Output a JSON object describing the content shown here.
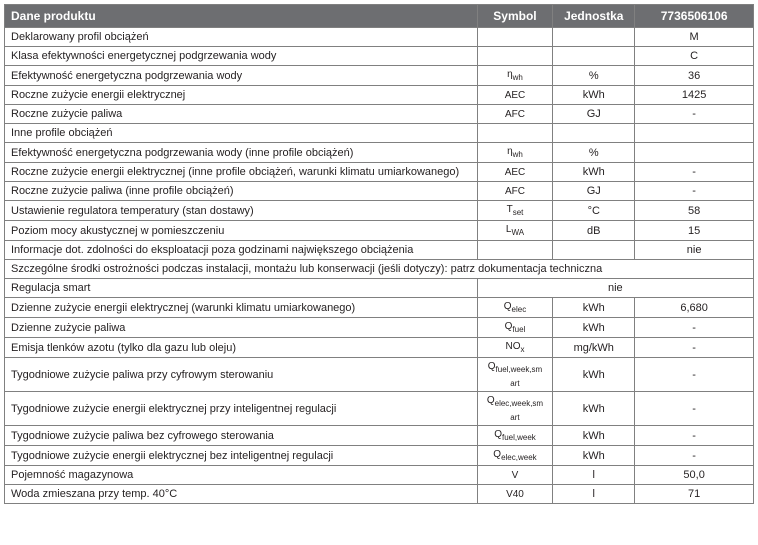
{
  "headers": {
    "product_data": "Dane produktu",
    "symbol": "Symbol",
    "unit": "Jednostka",
    "model": "7736506106"
  },
  "rows": [
    {
      "label": "Deklarowany profil obciążeń",
      "symbol": "",
      "unit": "",
      "value": "M"
    },
    {
      "label": "Klasa efektywności energetycznej podgrzewania wody",
      "symbol": "",
      "unit": "",
      "value": "C"
    },
    {
      "label": "Efektywność energetyczna podgrzewania wody",
      "symbol_html": "η<sub>wh</sub>",
      "unit": "%",
      "value": "36"
    },
    {
      "label": "Roczne zużycie energii elektrycznej",
      "symbol": "AEC",
      "unit": "kWh",
      "value": "1425"
    },
    {
      "label": "Roczne zużycie paliwa",
      "symbol": "AFC",
      "unit": "GJ",
      "value": "-"
    },
    {
      "label": "Inne profile obciążeń",
      "symbol": "",
      "unit": "",
      "value": ""
    },
    {
      "label": "Efektywność energetyczna podgrzewania wody (inne profile obciążeń)",
      "symbol_html": "η<sub>wh</sub>",
      "unit": "%",
      "value": ""
    },
    {
      "label": "Roczne zużycie energii elektrycznej (inne profile obciążeń, warunki klimatu umiarkowanego)",
      "symbol": "AEC",
      "unit": "kWh",
      "value": "-"
    },
    {
      "label": "Roczne zużycie paliwa (inne profile obciążeń)",
      "symbol": "AFC",
      "unit": "GJ",
      "value": "-"
    },
    {
      "label": "Ustawienie regulatora temperatury (stan dostawy)",
      "symbol_html": "T<sub>set</sub>",
      "unit": "°C",
      "value": "58"
    },
    {
      "label": "Poziom mocy akustycznej w pomieszczeniu",
      "symbol_html": "L<sub>WA</sub>",
      "unit": "dB",
      "value": "15"
    },
    {
      "label": "Informacje dot. zdolności do eksploatacji poza godzinami największego obciążenia",
      "symbol": "",
      "unit": "",
      "value": "nie"
    }
  ],
  "merged_row": "Szczególne środki ostrożności podczas instalacji, montażu lub konserwacji (jeśli dotyczy): patrz dokumentacja techniczna",
  "smart_row": {
    "label": "Regulacja smart",
    "value": "nie"
  },
  "rows2": [
    {
      "label": "Dzienne zużycie energii elektrycznej (warunki klimatu umiarkowanego)",
      "symbol_html": "Q<sub>elec</sub>",
      "unit": "kWh",
      "value": "6,680"
    },
    {
      "label": "Dzienne zużycie paliwa",
      "symbol_html": "Q<sub>fuel</sub>",
      "unit": "kWh",
      "value": "-"
    },
    {
      "label": "Emisja tlenków azotu (tylko dla gazu lub oleju)",
      "symbol_html": "NO<sub>x</sub>",
      "unit": "mg/kWh",
      "value": "-"
    },
    {
      "label": "Tygodniowe zużycie paliwa przy cyfrowym sterowaniu",
      "symbol_html": "Q<sub>fuel,week,sm<br>art</sub>",
      "unit": "kWh",
      "value": "-",
      "tall": true
    },
    {
      "label": "Tygodniowe zużycie energii elektrycznej przy inteligentnej regulacji",
      "symbol_html": "Q<sub>elec,week,sm<br>art</sub>",
      "unit": "kWh",
      "value": "-",
      "tall": true
    },
    {
      "label": "Tygodniowe zużycie paliwa bez cyfrowego sterowania",
      "symbol_html": "Q<sub>fuel,week</sub>",
      "unit": "kWh",
      "value": "-"
    },
    {
      "label": "Tygodniowe zużycie energii elektrycznej bez inteligentnej regulacji",
      "symbol_html": "Q<sub>elec,week</sub>",
      "unit": "kWh",
      "value": "-"
    },
    {
      "label": "Pojemność magazynowa",
      "symbol": "V",
      "unit": "l",
      "value": "50,0"
    },
    {
      "label": "Woda zmieszana przy temp. 40°C",
      "symbol": "V40",
      "unit": "l",
      "value": "71"
    }
  ]
}
